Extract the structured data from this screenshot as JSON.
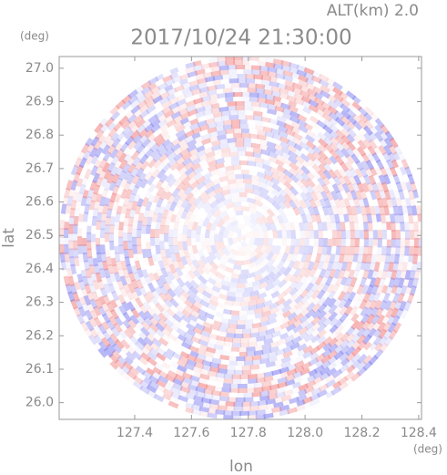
{
  "chart_data": {
    "type": "radar-field",
    "title": "2017/10/24 21:30:00",
    "subtitle": "ALT(km) 2.0",
    "x_label": "lon",
    "y_label": "lat",
    "x_unit": "(deg)",
    "y_unit": "(deg)",
    "xlim": [
      127.134,
      128.41
    ],
    "ylim": [
      25.95,
      27.035
    ],
    "xticks": [
      127.4,
      127.6,
      127.8,
      {
        "value": 128.0,
        "label": "128.0"
      },
      128.2,
      128.4
    ],
    "yticks": [
      {
        "value": 26.0,
        "label": "26.0"
      },
      26.1,
      26.2,
      26.3,
      26.4,
      26.5,
      26.6,
      26.7,
      26.8,
      26.9,
      {
        "value": 27.0,
        "label": "27.0"
      }
    ]
  }
}
